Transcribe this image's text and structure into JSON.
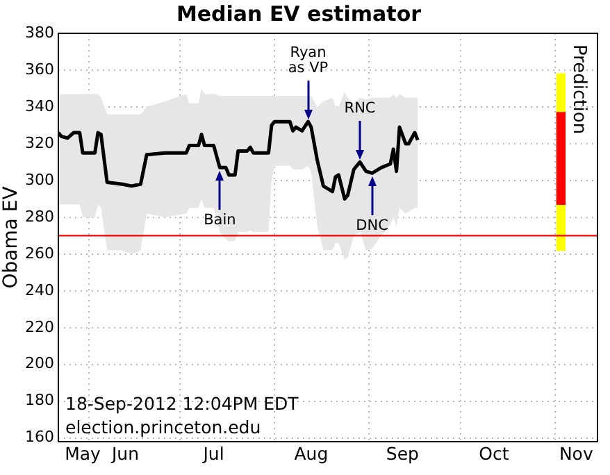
{
  "chart_data": {
    "type": "line",
    "title": "Median EV estimator",
    "ylabel": "Obama EV",
    "x": [
      "2012-05-22",
      "2012-05-23",
      "2012-05-25",
      "2012-05-27",
      "2012-05-29",
      "2012-05-30",
      "2012-06-03",
      "2012-06-04",
      "2012-06-05",
      "2012-06-07",
      "2012-06-12",
      "2012-06-15",
      "2012-06-18",
      "2012-06-20",
      "2012-06-26",
      "2012-07-03",
      "2012-07-04",
      "2012-07-07",
      "2012-07-08",
      "2012-07-09",
      "2012-07-12",
      "2012-07-14",
      "2012-07-16",
      "2012-07-17",
      "2012-07-19",
      "2012-07-20",
      "2012-07-23",
      "2012-07-24",
      "2012-07-25",
      "2012-07-30",
      "2012-07-31",
      "2012-08-01",
      "2012-08-06",
      "2012-08-07",
      "2012-08-08",
      "2012-08-10",
      "2012-08-12",
      "2012-08-13",
      "2012-08-15",
      "2012-08-17",
      "2012-08-20",
      "2012-08-21",
      "2012-08-22",
      "2012-08-24",
      "2012-08-25",
      "2012-08-27",
      "2012-08-29",
      "2012-08-31",
      "2012-09-02",
      "2012-09-05",
      "2012-09-08",
      "2012-09-09",
      "2012-09-10",
      "2012-09-11",
      "2012-09-13",
      "2012-09-14",
      "2012-09-16",
      "2012-09-17"
    ],
    "series": [
      {
        "color": "#000000",
        "values": [
          326,
          324,
          323,
          326,
          326,
          315,
          315,
          326,
          325,
          299,
          298,
          297,
          298,
          314,
          315,
          315,
          319,
          319,
          325,
          319,
          319,
          307,
          307,
          303,
          303,
          316,
          316,
          318,
          315,
          315,
          330,
          332,
          332,
          327,
          329,
          327,
          332,
          329,
          311,
          297,
          294,
          302,
          303,
          290,
          292,
          306,
          310,
          305,
          304,
          307,
          309,
          317,
          305,
          329,
          320,
          320,
          326,
          322
        ],
        "lower": [
          287,
          287,
          287,
          287,
          287,
          280,
          280,
          287,
          285,
          262,
          262,
          260,
          262,
          282,
          280,
          282,
          285,
          285,
          290,
          285,
          285,
          272,
          268,
          267,
          267,
          272,
          272,
          273,
          272,
          272,
          300,
          308,
          308,
          306,
          306,
          306,
          308,
          305,
          275,
          262,
          262,
          266,
          266,
          257,
          258,
          270,
          272,
          262,
          263,
          270,
          276,
          280,
          275,
          285,
          282,
          283,
          285,
          285
        ],
        "upper": [
          347,
          347,
          347,
          347,
          347,
          347,
          347,
          347,
          345,
          336,
          336,
          336,
          336,
          340,
          343,
          347,
          342,
          342,
          350,
          347,
          347,
          346,
          346,
          346,
          346,
          346,
          346,
          346,
          346,
          346,
          346,
          346,
          346,
          346,
          346,
          346,
          346,
          346,
          340,
          343,
          345,
          340,
          340,
          348,
          345,
          342,
          345,
          344,
          345,
          345,
          345,
          347,
          345,
          347,
          345,
          345,
          345,
          345
        ]
      },
      {
        "type": "bar",
        "name": "Prediction",
        "color": "#ffff00",
        "x": [
          "2012-11-03"
        ],
        "base": [
          262
        ],
        "values": [
          96
        ]
      },
      {
        "type": "bar",
        "color": "#ff0000",
        "x": [
          "2012-11-03"
        ],
        "base": [
          287
        ],
        "values": [
          50
        ]
      }
    ],
    "xlim": [
      "2012-05-22",
      "2012-11-15"
    ],
    "xticks": [
      {
        "value": "2012-06-01",
        "label": null
      },
      {
        "value": "2012-07-01",
        "label": null
      },
      {
        "value": "2012-08-01",
        "label": null
      },
      {
        "value": "2012-09-01",
        "label": null
      },
      {
        "value": "2012-10-01",
        "label": null
      },
      {
        "value": "2012-11-01",
        "label": null
      },
      {
        "value": "2012-05-30",
        "label": "May"
      },
      {
        "value": "2012-06-13",
        "label": "Jun"
      },
      {
        "value": "2012-07-12",
        "label": "Jul"
      },
      {
        "value": "2012-08-13",
        "label": "Aug"
      },
      {
        "value": "2012-09-12",
        "label": "Sep"
      },
      {
        "value": "2012-10-12",
        "label": "Oct"
      },
      {
        "value": "2012-11-08",
        "label": "Nov"
      }
    ],
    "ylim": [
      158,
      380
    ],
    "yticks": [
      160,
      180,
      200,
      220,
      240,
      260,
      280,
      300,
      320,
      340,
      360,
      380
    ],
    "ref_lines": [
      {
        "axis": "y",
        "value": 270,
        "color": "#ff0000"
      }
    ],
    "annotations": [
      {
        "text": "Bain",
        "x": "2012-07-14",
        "y": 307
      },
      {
        "text": "Ryan\nas VP",
        "x": "2012-08-12",
        "y": 332
      },
      {
        "text": "RNC",
        "x": "2012-08-29",
        "y": 310
      },
      {
        "text": "DNC",
        "x": "2012-09-02",
        "y": 304
      },
      "18-Sep-2012 12:04PM EDT",
      "election.princeton.edu"
    ],
    "grid": true,
    "legend": false,
    "marker": "none",
    "line_style": "solid"
  }
}
